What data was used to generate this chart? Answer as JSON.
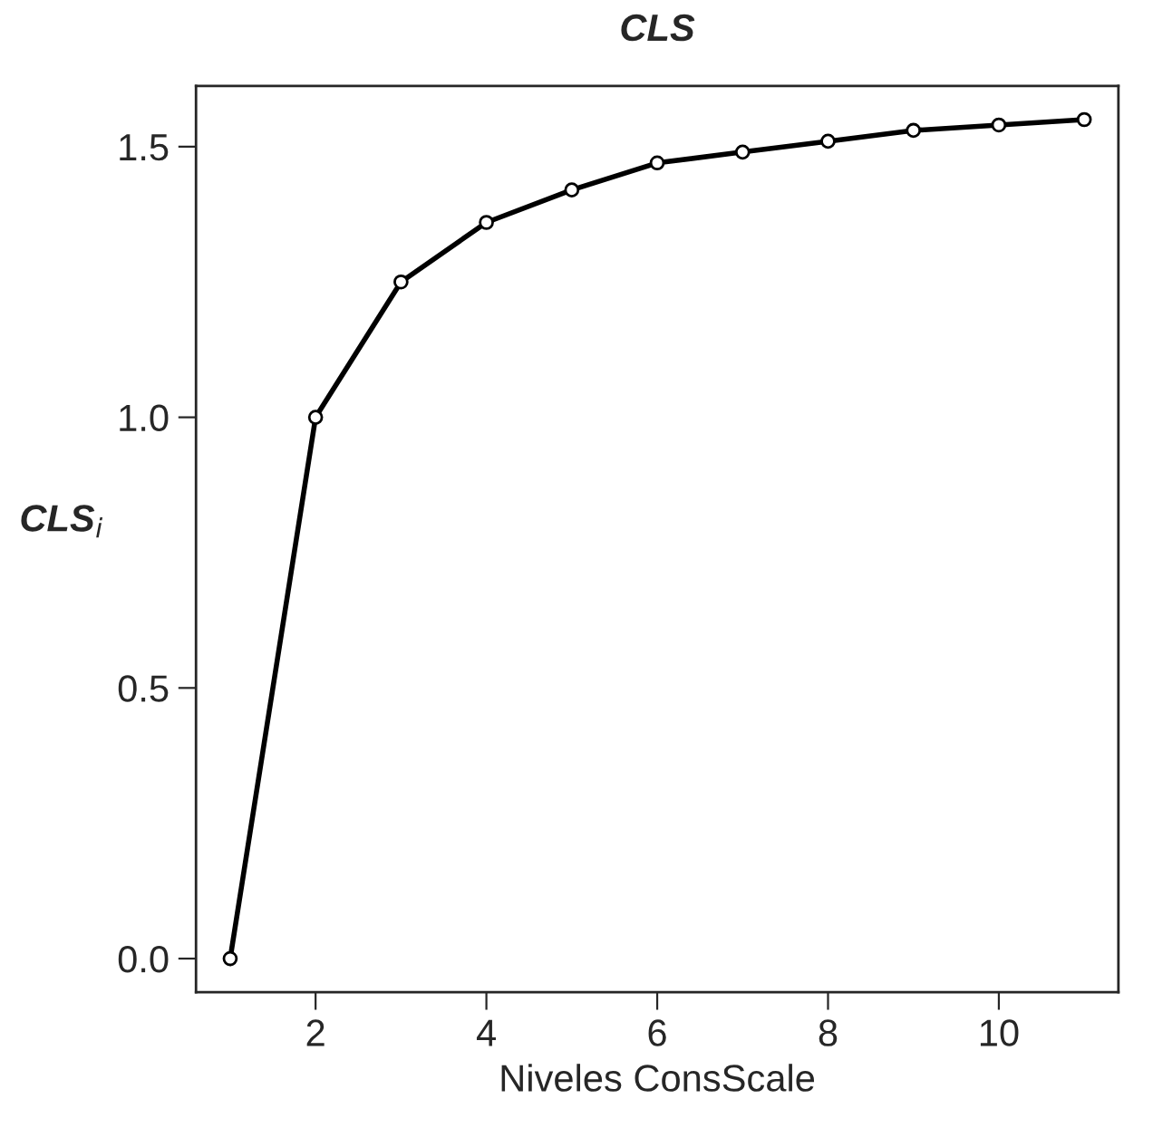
{
  "chart_data": {
    "type": "line",
    "title": "CLS",
    "xlabel": "Niveles ConsScale",
    "ylabel": "CLS$_{i}$",
    "x": [
      1,
      2,
      3,
      4,
      5,
      6,
      7,
      8,
      9,
      10,
      11
    ],
    "series": [
      {
        "color": "#000000",
        "values": [
          0,
          1.0,
          1.25,
          1.36,
          1.42,
          1.47,
          1.49,
          1.51,
          1.53,
          1.54,
          1.55
        ]
      }
    ],
    "xlim": [
      0.6,
      11.4
    ],
    "ylim": [
      -0.062,
      1.612
    ],
    "xticks": [
      2,
      4,
      6,
      8,
      10
    ],
    "yticks": [
      {
        "value": 0,
        "label": "0.0"
      },
      0.5,
      {
        "value": 1,
        "label": "1.0"
      },
      1.5
    ],
    "grid": false,
    "legend": false,
    "marker": "circle",
    "line_style": "solid"
  }
}
